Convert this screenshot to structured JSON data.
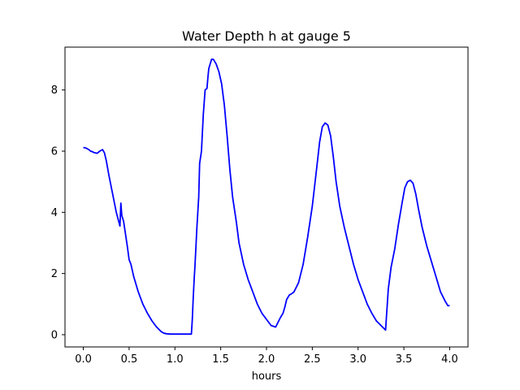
{
  "chart_data": {
    "type": "line",
    "title": "Water Depth h at gauge 5",
    "xlabel": "hours",
    "ylabel": "",
    "xlim": [
      -0.2,
      4.2
    ],
    "ylim": [
      -0.4,
      9.4
    ],
    "xticks": [
      {
        "value": 0.0,
        "label": "0.0"
      },
      {
        "value": 0.5,
        "label": "0.5"
      },
      {
        "value": 1.0,
        "label": "1.0"
      },
      {
        "value": 1.5,
        "label": "1.5"
      },
      {
        "value": 2.0,
        "label": "2.0"
      },
      {
        "value": 2.5,
        "label": "2.5"
      },
      {
        "value": 3.0,
        "label": "3.0"
      },
      {
        "value": 3.5,
        "label": "3.5"
      },
      {
        "value": 4.0,
        "label": "4.0"
      }
    ],
    "yticks": [
      {
        "value": 0,
        "label": "0"
      },
      {
        "value": 2,
        "label": "2"
      },
      {
        "value": 4,
        "label": "4"
      },
      {
        "value": 6,
        "label": "6"
      },
      {
        "value": 8,
        "label": "8"
      }
    ],
    "grid": false,
    "series": [
      {
        "color": "#0000ff",
        "x": [
          0.0,
          0.03,
          0.06,
          0.08,
          0.1,
          0.12,
          0.15,
          0.18,
          0.21,
          0.23,
          0.25,
          0.28,
          0.32,
          0.36,
          0.4,
          0.41,
          0.42,
          0.44,
          0.46,
          0.48,
          0.5,
          0.52,
          0.55,
          0.6,
          0.65,
          0.7,
          0.75,
          0.8,
          0.85,
          0.88,
          0.91,
          0.95,
          1.0,
          1.05,
          1.1,
          1.15,
          1.18,
          1.19,
          1.2,
          1.21,
          1.22,
          1.24,
          1.26,
          1.27,
          1.29,
          1.31,
          1.33,
          1.35,
          1.36,
          1.37,
          1.38,
          1.4,
          1.42,
          1.45,
          1.48,
          1.51,
          1.54,
          1.57,
          1.6,
          1.63,
          1.67,
          1.7,
          1.75,
          1.8,
          1.85,
          1.9,
          1.95,
          2.0,
          2.05,
          2.1,
          2.15,
          2.18,
          2.2,
          2.22,
          2.25,
          2.28,
          2.3,
          2.35,
          2.4,
          2.45,
          2.5,
          2.55,
          2.58,
          2.61,
          2.64,
          2.67,
          2.7,
          2.73,
          2.76,
          2.8,
          2.85,
          2.9,
          2.95,
          3.0,
          3.05,
          3.1,
          3.15,
          3.2,
          3.25,
          3.3,
          3.31,
          3.33,
          3.36,
          3.4,
          3.44,
          3.48,
          3.51,
          3.54,
          3.57,
          3.6,
          3.63,
          3.66,
          3.7,
          3.75,
          3.8,
          3.85,
          3.9,
          3.95,
          3.98,
          4.0
        ],
        "y": [
          6.12,
          6.1,
          6.05,
          6.0,
          5.98,
          5.95,
          5.93,
          6.0,
          6.05,
          5.95,
          5.7,
          5.2,
          4.6,
          4.0,
          3.55,
          4.3,
          3.9,
          3.7,
          3.3,
          2.9,
          2.45,
          2.3,
          1.9,
          1.4,
          1.0,
          0.7,
          0.45,
          0.25,
          0.1,
          0.05,
          0.03,
          0.02,
          0.02,
          0.02,
          0.02,
          0.02,
          0.02,
          0.5,
          1.2,
          1.8,
          2.3,
          3.5,
          4.5,
          5.6,
          6.0,
          7.2,
          8.0,
          8.05,
          8.4,
          8.7,
          8.8,
          9.0,
          9.0,
          8.85,
          8.6,
          8.2,
          7.5,
          6.5,
          5.4,
          4.5,
          3.7,
          3.0,
          2.3,
          1.8,
          1.4,
          1.0,
          0.7,
          0.5,
          0.3,
          0.25,
          0.55,
          0.7,
          0.9,
          1.15,
          1.3,
          1.35,
          1.4,
          1.7,
          2.3,
          3.2,
          4.2,
          5.5,
          6.3,
          6.8,
          6.92,
          6.85,
          6.5,
          5.8,
          5.0,
          4.2,
          3.5,
          2.9,
          2.3,
          1.8,
          1.4,
          1.0,
          0.7,
          0.45,
          0.3,
          0.15,
          0.6,
          1.5,
          2.2,
          2.8,
          3.6,
          4.3,
          4.8,
          5.0,
          5.05,
          4.95,
          4.6,
          4.1,
          3.5,
          2.9,
          2.4,
          1.9,
          1.4,
          1.1,
          0.95,
          0.95
        ]
      }
    ]
  }
}
